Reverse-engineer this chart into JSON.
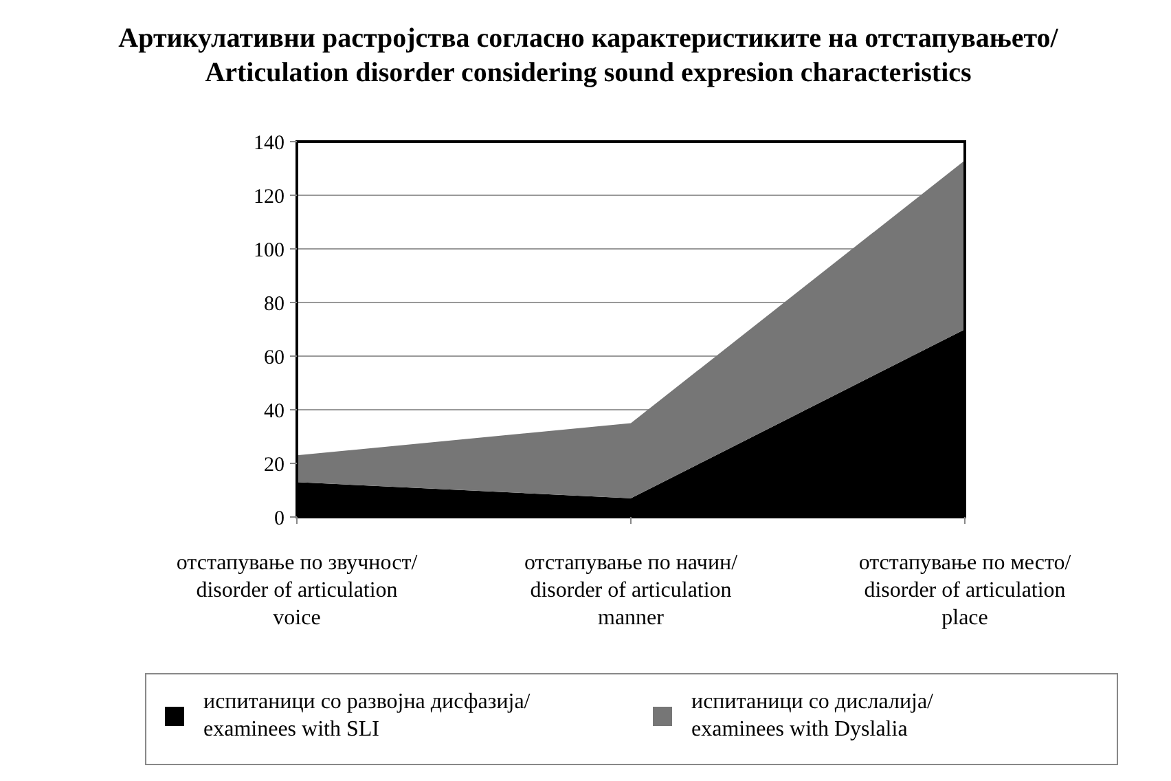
{
  "chart_data": {
    "type": "area",
    "stacked": true,
    "title": "Артикулативни растројства согласно карактеристиките на отстапувањето/ Articulation disorder considering sound expresion characteristics",
    "categories": [
      "отстапување по звучност/ disorder of articulation voice",
      "отстапување по начин/ disorder of articulation manner",
      "отстапување по место/ disorder of articulation place"
    ],
    "series": [
      {
        "name": "испитаници со развојна дисфазија/ examinees with SLI",
        "color": "#000000",
        "values": [
          13,
          7,
          70
        ]
      },
      {
        "name": "испитаници со дислалија/ examinees with Dyslalia",
        "color": "#767676",
        "values": [
          10,
          28,
          63
        ]
      }
    ],
    "ylim": [
      0,
      140
    ],
    "yticks": [
      0,
      20,
      40,
      60,
      80,
      100,
      120,
      140
    ],
    "grid": "y",
    "legend": "bottom"
  }
}
